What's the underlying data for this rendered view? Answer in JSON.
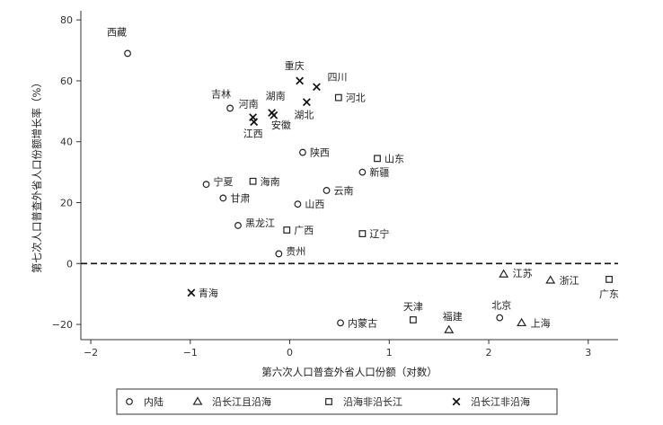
{
  "chart_data": {
    "type": "scatter",
    "xlabel": "第六次人口普查外省人口份额（对数）",
    "ylabel": "第七次人口普查外省人口份额增长率（%）",
    "xlim": [
      -2.1,
      3.3
    ],
    "ylim": [
      -25,
      83
    ],
    "x_ticks": [
      -2,
      -1,
      0,
      1,
      2,
      3
    ],
    "y_ticks": [
      -20,
      0,
      20,
      40,
      60,
      80
    ],
    "reference_line": {
      "y": 0,
      "style": "dashed"
    },
    "grid": false,
    "legend_position": "bottom",
    "series": [
      {
        "name": "内陆",
        "marker": "circle",
        "points": [
          {
            "label": "西藏",
            "x": -1.63,
            "y": 69.0
          },
          {
            "label": "吉林",
            "x": -0.6,
            "y": 51.0
          },
          {
            "label": "陕西",
            "x": 0.13,
            "y": 36.5
          },
          {
            "label": "新疆",
            "x": 0.73,
            "y": 30.0
          },
          {
            "label": "宁夏",
            "x": -0.84,
            "y": 26.0
          },
          {
            "label": "云南",
            "x": 0.37,
            "y": 24.0
          },
          {
            "label": "甘肃",
            "x": -0.67,
            "y": 21.5
          },
          {
            "label": "山西",
            "x": 0.08,
            "y": 19.5
          },
          {
            "label": "黑龙江",
            "x": -0.52,
            "y": 12.5
          },
          {
            "label": "贵州",
            "x": -0.11,
            "y": 3.2
          },
          {
            "label": "内蒙古",
            "x": 0.51,
            "y": -19.5
          },
          {
            "label": "北京",
            "x": 2.11,
            "y": -17.8
          }
        ]
      },
      {
        "name": "沿长江且沿海",
        "marker": "triangle",
        "points": [
          {
            "label": "江苏",
            "x": 2.15,
            "y": -3.5
          },
          {
            "label": "浙江",
            "x": 2.62,
            "y": -5.5
          },
          {
            "label": "上海",
            "x": 2.33,
            "y": -19.5
          },
          {
            "label": "福建",
            "x": 1.6,
            "y": -21.8
          }
        ]
      },
      {
        "name": "沿海非沿长江",
        "marker": "square",
        "points": [
          {
            "label": "河北",
            "x": 0.49,
            "y": 54.5
          },
          {
            "label": "山东",
            "x": 0.88,
            "y": 34.5
          },
          {
            "label": "海南",
            "x": -0.37,
            "y": 27.0
          },
          {
            "label": "广西",
            "x": -0.03,
            "y": 11.0
          },
          {
            "label": "辽宁",
            "x": 0.73,
            "y": 9.8
          },
          {
            "label": "天津",
            "x": 1.24,
            "y": -18.5
          },
          {
            "label": "广东",
            "x": 3.21,
            "y": -5.2
          }
        ]
      },
      {
        "name": "沿长江非沿海",
        "marker": "x",
        "points": [
          {
            "label": "重庆",
            "x": 0.1,
            "y": 60.0
          },
          {
            "label": "四川",
            "x": 0.27,
            "y": 58.0
          },
          {
            "label": "湖北",
            "x": 0.17,
            "y": 53.0
          },
          {
            "label": "河南",
            "x": -0.37,
            "y": 48.0
          },
          {
            "label": "湖南",
            "x": -0.18,
            "y": 49.5
          },
          {
            "label": "江西",
            "x": -0.36,
            "y": 46.5
          },
          {
            "label": "安徽",
            "x": -0.16,
            "y": 48.7
          },
          {
            "label": "青海",
            "x": -0.99,
            "y": -9.6
          }
        ]
      }
    ]
  }
}
